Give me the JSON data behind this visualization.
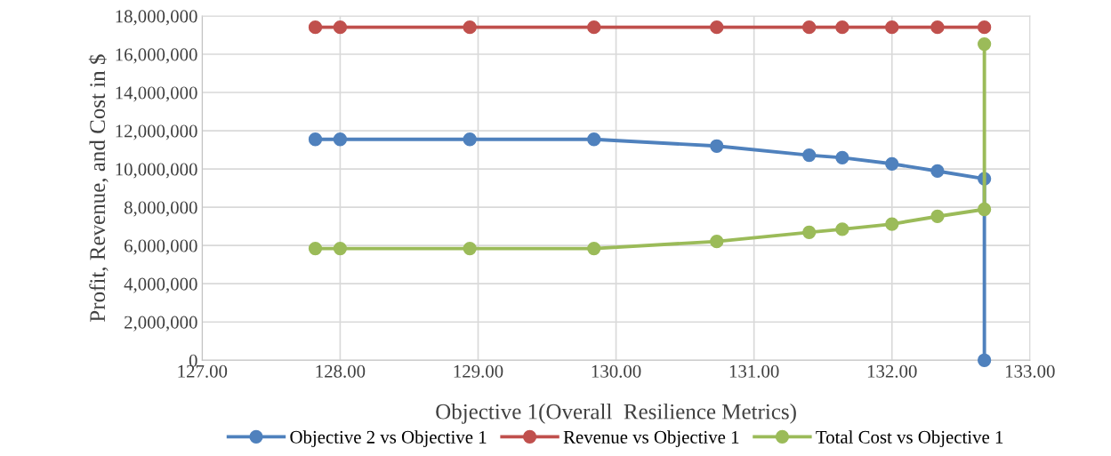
{
  "chart_data": {
    "type": "line",
    "xlabel": "Objective 1(Overall  Resilience Metrics)",
    "ylabel": "Profit, Revenue, and Cost in $",
    "xlim": [
      127,
      133
    ],
    "xticks": [
      {
        "value": 127,
        "label": "127.00"
      },
      {
        "value": 128,
        "label": "128.00"
      },
      {
        "value": 129,
        "label": "129.00"
      },
      {
        "value": 130,
        "label": "130.00"
      },
      {
        "value": 131,
        "label": "131.00"
      },
      {
        "value": 132,
        "label": "132.00"
      },
      {
        "value": 133,
        "label": "133.00"
      }
    ],
    "ylim": [
      0,
      18000000
    ],
    "yticks": [
      {
        "value": 0,
        "label": "0"
      },
      {
        "value": 2000000,
        "label": "2,000,000"
      },
      {
        "value": 4000000,
        "label": "4,000,000"
      },
      {
        "value": 6000000,
        "label": "6,000,000"
      },
      {
        "value": 8000000,
        "label": "8,000,000"
      },
      {
        "value": 10000000,
        "label": "10,000,000"
      },
      {
        "value": 12000000,
        "label": "12,000,000"
      },
      {
        "value": 14000000,
        "label": "14,000,000"
      },
      {
        "value": 16000000,
        "label": "16,000,000"
      },
      {
        "value": 18000000,
        "label": "18,000,000"
      }
    ],
    "grid": true,
    "legend": "bottom",
    "marker": "circle",
    "line_style": "solid",
    "series": [
      {
        "name": "Objective 2 vs Objective 1",
        "color": "#4f81bd",
        "x": [
          127.82,
          128.0,
          128.94,
          129.84,
          130.73,
          131.4,
          131.64,
          132.0,
          132.33,
          132.67,
          132.67
        ],
        "values": [
          11550000,
          11550000,
          11550000,
          11550000,
          11200000,
          10720000,
          10590000,
          10270000,
          9890000,
          9490000,
          0
        ]
      },
      {
        "name": "Revenue vs Objective 1",
        "color": "#c0504d",
        "x": [
          127.82,
          128.0,
          128.94,
          129.84,
          130.73,
          131.4,
          131.64,
          132.0,
          132.33,
          132.67
        ],
        "values": [
          17410000,
          17410000,
          17410000,
          17410000,
          17410000,
          17410000,
          17410000,
          17410000,
          17410000,
          17410000
        ]
      },
      {
        "name": "Total Cost vs Objective 1",
        "color": "#9bbb59",
        "x": [
          127.82,
          128.0,
          128.94,
          129.84,
          130.73,
          131.4,
          131.64,
          132.0,
          132.33,
          132.67,
          132.67
        ],
        "values": [
          5840000,
          5840000,
          5840000,
          5840000,
          6210000,
          6690000,
          6850000,
          7120000,
          7520000,
          7890000,
          16530000
        ]
      }
    ]
  }
}
